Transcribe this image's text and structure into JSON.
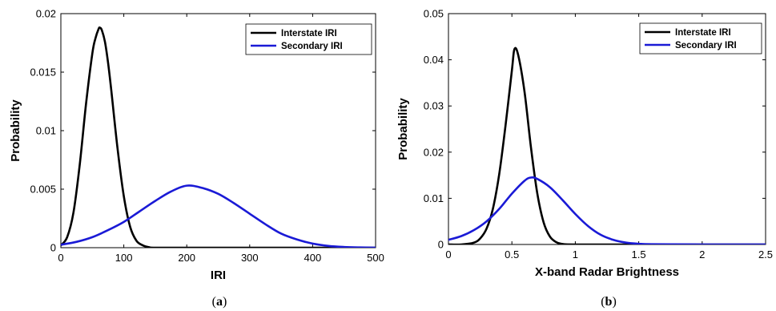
{
  "chart_data": [
    {
      "type": "line",
      "panel_label": "(a)",
      "xlabel": "IRI",
      "ylabel": "Probability",
      "xlim": [
        0,
        500
      ],
      "ylim": [
        0,
        0.02
      ],
      "xticks": [
        "0",
        "100",
        "200",
        "300",
        "400",
        "500"
      ],
      "yticks": [
        "0",
        "0.005",
        "0.01",
        "0.015",
        "0.02"
      ],
      "grid": false,
      "legend_position": "top-right",
      "series": [
        {
          "name": "Interstate IRI",
          "color": "#000000",
          "x": [
            0,
            10,
            20,
            30,
            40,
            50,
            55,
            60,
            62,
            65,
            70,
            75,
            80,
            90,
            100,
            110,
            120,
            130,
            140,
            150,
            200,
            300,
            400,
            500
          ],
          "y": [
            0.0002,
            0.0009,
            0.003,
            0.0071,
            0.0123,
            0.0166,
            0.0179,
            0.0187,
            0.0188,
            0.0186,
            0.0176,
            0.0158,
            0.0135,
            0.0085,
            0.0044,
            0.0018,
            0.0006,
            0.0002,
            4e-05,
            0.0,
            0.0,
            0.0,
            0.0,
            0.0
          ]
        },
        {
          "name": "Secondary IRI",
          "color": "#1a1ad6",
          "x": [
            0,
            25,
            50,
            75,
            100,
            125,
            150,
            175,
            200,
            225,
            250,
            275,
            300,
            325,
            350,
            375,
            400,
            425,
            450,
            475,
            500
          ],
          "y": [
            0.00025,
            0.0005,
            0.0009,
            0.0015,
            0.0022,
            0.0031,
            0.004,
            0.0048,
            0.0053,
            0.0051,
            0.0046,
            0.0038,
            0.0029,
            0.002,
            0.0012,
            0.0007,
            0.00035,
            0.00015,
            6e-05,
            2e-05,
            0.0
          ]
        }
      ]
    },
    {
      "type": "line",
      "panel_label": "(b)",
      "xlabel": "X-band Radar Brightness",
      "ylabel": "Probability",
      "xlim": [
        0,
        2.5
      ],
      "ylim": [
        0,
        0.05
      ],
      "xticks": [
        "0",
        "0.5",
        "1",
        "1.5",
        "2",
        "2.5"
      ],
      "yticks": [
        "0",
        "0.01",
        "0.02",
        "0.03",
        "0.04",
        "0.05"
      ],
      "grid": false,
      "legend_position": "top-right",
      "series": [
        {
          "name": "Interstate IRI",
          "color": "#000000",
          "x": [
            0,
            0.1,
            0.2,
            0.25,
            0.3,
            0.35,
            0.4,
            0.45,
            0.5,
            0.52,
            0.55,
            0.6,
            0.65,
            0.7,
            0.75,
            0.8,
            0.85,
            0.9,
            1.0,
            1.5,
            2.0,
            2.5
          ],
          "y": [
            0.0,
            0.0,
            0.0004,
            0.0013,
            0.0034,
            0.0077,
            0.0152,
            0.0258,
            0.0377,
            0.0423,
            0.041,
            0.033,
            0.0211,
            0.0111,
            0.0048,
            0.0017,
            0.0005,
            0.0001,
            0.0,
            0.0,
            0.0,
            0.0
          ]
        },
        {
          "name": "Secondary IRI",
          "color": "#1a1ad6",
          "x": [
            0,
            0.1,
            0.2,
            0.3,
            0.4,
            0.5,
            0.6,
            0.65,
            0.7,
            0.8,
            0.9,
            1.0,
            1.1,
            1.2,
            1.3,
            1.4,
            1.5,
            1.6,
            2.0,
            2.5
          ],
          "y": [
            0.001,
            0.0018,
            0.0031,
            0.005,
            0.0077,
            0.011,
            0.0138,
            0.0145,
            0.0142,
            0.0124,
            0.0096,
            0.0066,
            0.004,
            0.0021,
            0.001,
            0.0004,
            0.00015,
            5e-05,
            0.0,
            0.0
          ]
        }
      ]
    }
  ]
}
